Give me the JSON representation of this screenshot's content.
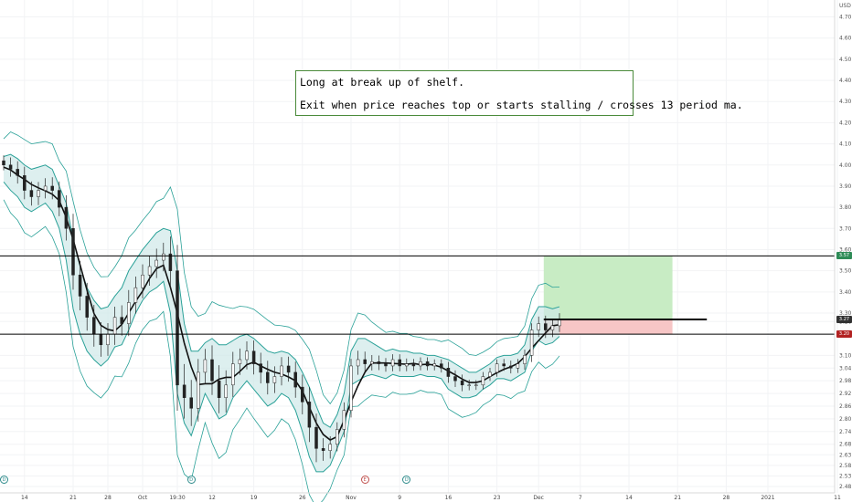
{
  "annotation": {
    "line1": "Long at break up of shelf.",
    "line2": "Exit when price reaches top or starts stalling / crosses 13 period ma."
  },
  "chart_data": {
    "type": "candlestick",
    "currency_label": "USD",
    "ylim": [
      2.45,
      4.78
    ],
    "y_ticks": [
      4.7,
      4.6,
      4.5,
      4.4,
      4.3,
      4.2,
      4.1,
      4.0,
      3.9,
      3.8,
      3.7,
      3.6,
      3.5,
      3.4,
      3.3,
      3.26,
      3.1,
      3.04,
      2.98,
      2.92,
      2.86,
      2.8,
      2.74,
      2.68,
      2.63,
      2.58,
      2.53,
      2.48
    ],
    "y_tick_labels": [
      "4.70",
      "4.60",
      "4.50",
      "4.40",
      "4.30",
      "4.20",
      "4.10",
      "4.00",
      "3.90",
      "3.80",
      "3.70",
      "3.60",
      "3.50",
      "3.40",
      "3.30",
      "3.26",
      "3.10",
      "3.04",
      "2.98",
      "2.92",
      "2.86",
      "2.80",
      "2.74",
      "2.68",
      "2.63",
      "2.58",
      "2.53",
      "2.48"
    ],
    "x_ticks": [
      {
        "label": "14",
        "index": 3
      },
      {
        "label": "21",
        "index": 10
      },
      {
        "label": "28",
        "index": 15
      },
      {
        "label": "Oct",
        "index": 20
      },
      {
        "label": "19:30",
        "index": 25
      },
      {
        "label": "12",
        "index": 30
      },
      {
        "label": "19",
        "index": 36
      },
      {
        "label": "26",
        "index": 43
      },
      {
        "label": "Nov",
        "index": 50
      },
      {
        "label": "9",
        "index": 57
      },
      {
        "label": "16",
        "index": 64
      },
      {
        "label": "23",
        "index": 71
      },
      {
        "label": "Dec",
        "index": 77
      },
      {
        "label": "7",
        "index": 83
      },
      {
        "label": "14",
        "index": 90
      },
      {
        "label": "21",
        "index": 97
      },
      {
        "label": "28",
        "index": 104
      },
      {
        "label": "2021",
        "index": 110
      },
      {
        "label": "11",
        "index": 120
      }
    ],
    "close": [
      4.0,
      3.98,
      3.95,
      3.88,
      3.85,
      3.88,
      3.9,
      3.88,
      3.8,
      3.7,
      3.48,
      3.38,
      3.28,
      3.2,
      3.15,
      3.2,
      3.28,
      3.25,
      3.35,
      3.42,
      3.48,
      3.52,
      3.55,
      3.58,
      3.5,
      2.96,
      2.9,
      2.85,
      3.02,
      3.08,
      2.98,
      2.9,
      2.96,
      3.06,
      3.08,
      3.12,
      3.06,
      3.02,
      2.97,
      3.0,
      3.05,
      3.02,
      2.95,
      2.88,
      2.76,
      2.66,
      2.65,
      2.68,
      2.75,
      2.84,
      3.05,
      3.08,
      3.06,
      3.07,
      3.06,
      3.05,
      3.08,
      3.05,
      3.06,
      3.05,
      3.07,
      3.05,
      3.06,
      3.04,
      3.0,
      2.98,
      2.96,
      2.96,
      2.96,
      3.0,
      3.02,
      3.06,
      3.05,
      3.04,
      3.06,
      3.1,
      3.22,
      3.25,
      3.22,
      3.24,
      3.27
    ],
    "upper_band": [
      4.04,
      4.05,
      4.03,
      4.0,
      3.98,
      3.99,
      4.0,
      3.98,
      3.9,
      3.82,
      3.65,
      3.52,
      3.42,
      3.36,
      3.32,
      3.33,
      3.38,
      3.42,
      3.5,
      3.55,
      3.6,
      3.64,
      3.68,
      3.7,
      3.69,
      3.5,
      3.25,
      3.12,
      3.12,
      3.16,
      3.18,
      3.15,
      3.15,
      3.17,
      3.19,
      3.2,
      3.18,
      3.15,
      3.12,
      3.11,
      3.12,
      3.11,
      3.08,
      3.02,
      2.95,
      2.86,
      2.78,
      2.76,
      2.82,
      2.92,
      3.12,
      3.18,
      3.18,
      3.16,
      3.14,
      3.12,
      3.13,
      3.12,
      3.12,
      3.11,
      3.11,
      3.1,
      3.1,
      3.09,
      3.08,
      3.06,
      3.04,
      3.02,
      3.02,
      3.04,
      3.06,
      3.09,
      3.1,
      3.1,
      3.11,
      3.15,
      3.27,
      3.33,
      3.33,
      3.32,
      3.33
    ],
    "lower_band": [
      3.92,
      3.88,
      3.85,
      3.8,
      3.78,
      3.8,
      3.82,
      3.78,
      3.7,
      3.55,
      3.32,
      3.2,
      3.12,
      3.08,
      3.05,
      3.08,
      3.14,
      3.15,
      3.22,
      3.3,
      3.36,
      3.4,
      3.42,
      3.45,
      3.3,
      2.92,
      2.78,
      2.72,
      2.82,
      2.92,
      2.86,
      2.8,
      2.82,
      2.9,
      2.94,
      2.98,
      2.94,
      2.9,
      2.86,
      2.88,
      2.92,
      2.9,
      2.84,
      2.74,
      2.62,
      2.55,
      2.55,
      2.58,
      2.66,
      2.74,
      2.96,
      2.98,
      3.0,
      3.01,
      3.0,
      2.99,
      3.01,
      3.0,
      3.0,
      3.0,
      3.01,
      3.0,
      3.0,
      2.99,
      2.94,
      2.92,
      2.9,
      2.9,
      2.91,
      2.94,
      2.96,
      2.99,
      2.99,
      2.98,
      3.0,
      3.02,
      3.12,
      3.17,
      3.15,
      3.16,
      3.19
    ],
    "horizontal_lines": [
      3.57,
      3.2
    ],
    "shelf_line": {
      "price": 3.27,
      "from_index": 78,
      "to_index": 97
    },
    "position": {
      "type": "long",
      "entry": 3.27,
      "target": 3.57,
      "stop": 3.2,
      "from_index": 78,
      "to_index": 96
    },
    "price_tags": [
      {
        "label": "3.57",
        "value": 3.57,
        "color": "#2e8b57"
      },
      {
        "label": "3.27",
        "value": 3.27,
        "color": "#333333"
      },
      {
        "label": "3.20",
        "value": 3.2,
        "color": "#b22222"
      }
    ],
    "event_markers": [
      {
        "label": "D",
        "index": 0,
        "kind": "d"
      },
      {
        "label": "D",
        "index": 27,
        "kind": "d"
      },
      {
        "label": "E",
        "index": 52,
        "kind": "e"
      },
      {
        "label": "D",
        "index": 58,
        "kind": "d"
      }
    ],
    "colors": {
      "candle": "#222222",
      "band": "#2aa198",
      "band_fill": "#cfe8e8",
      "ma": "#111111",
      "target_zone": "#c8ecc4",
      "stop_zone": "#f7c6c6",
      "note_border": "#4a8a3a"
    }
  }
}
